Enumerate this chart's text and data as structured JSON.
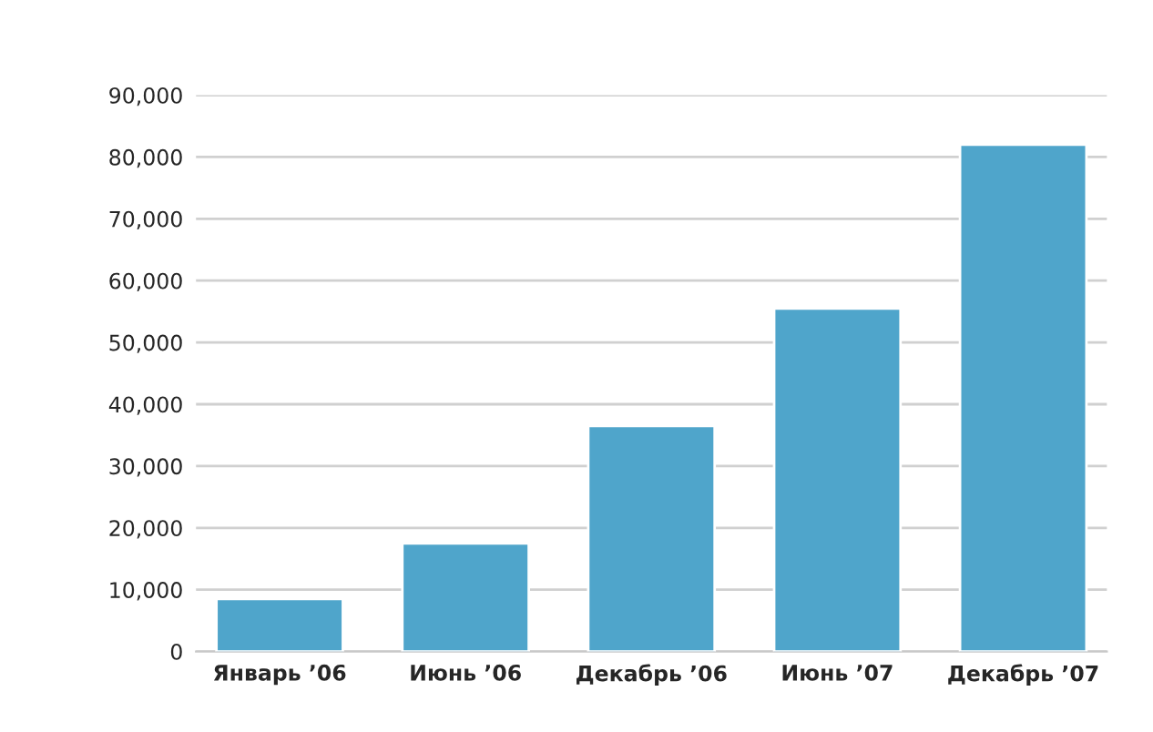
{
  "chart_data": {
    "type": "bar",
    "categories": [
      "Январь ’06",
      "Июнь ’06",
      "Декабрь ’06",
      "Июнь ’07",
      "Декабрь ’07"
    ],
    "values": [
      8500,
      17500,
      36500,
      55500,
      82000
    ],
    "color": "#4fa5cb",
    "ylim": [
      0,
      90000
    ],
    "yticks": [
      0,
      {
        "value": 10000,
        "label": "10,000"
      },
      {
        "value": 20000,
        "label": "20,000"
      },
      {
        "value": 30000,
        "label": "30,000"
      },
      {
        "value": 40000,
        "label": "40,000"
      },
      {
        "value": 50000,
        "label": "50,000"
      },
      {
        "value": 60000,
        "label": "60,000"
      },
      {
        "value": 70000,
        "label": "70,000"
      },
      {
        "value": 80000,
        "label": "80,000"
      },
      {
        "value": 90000,
        "label": "90,000"
      }
    ],
    "grid": "y"
  }
}
